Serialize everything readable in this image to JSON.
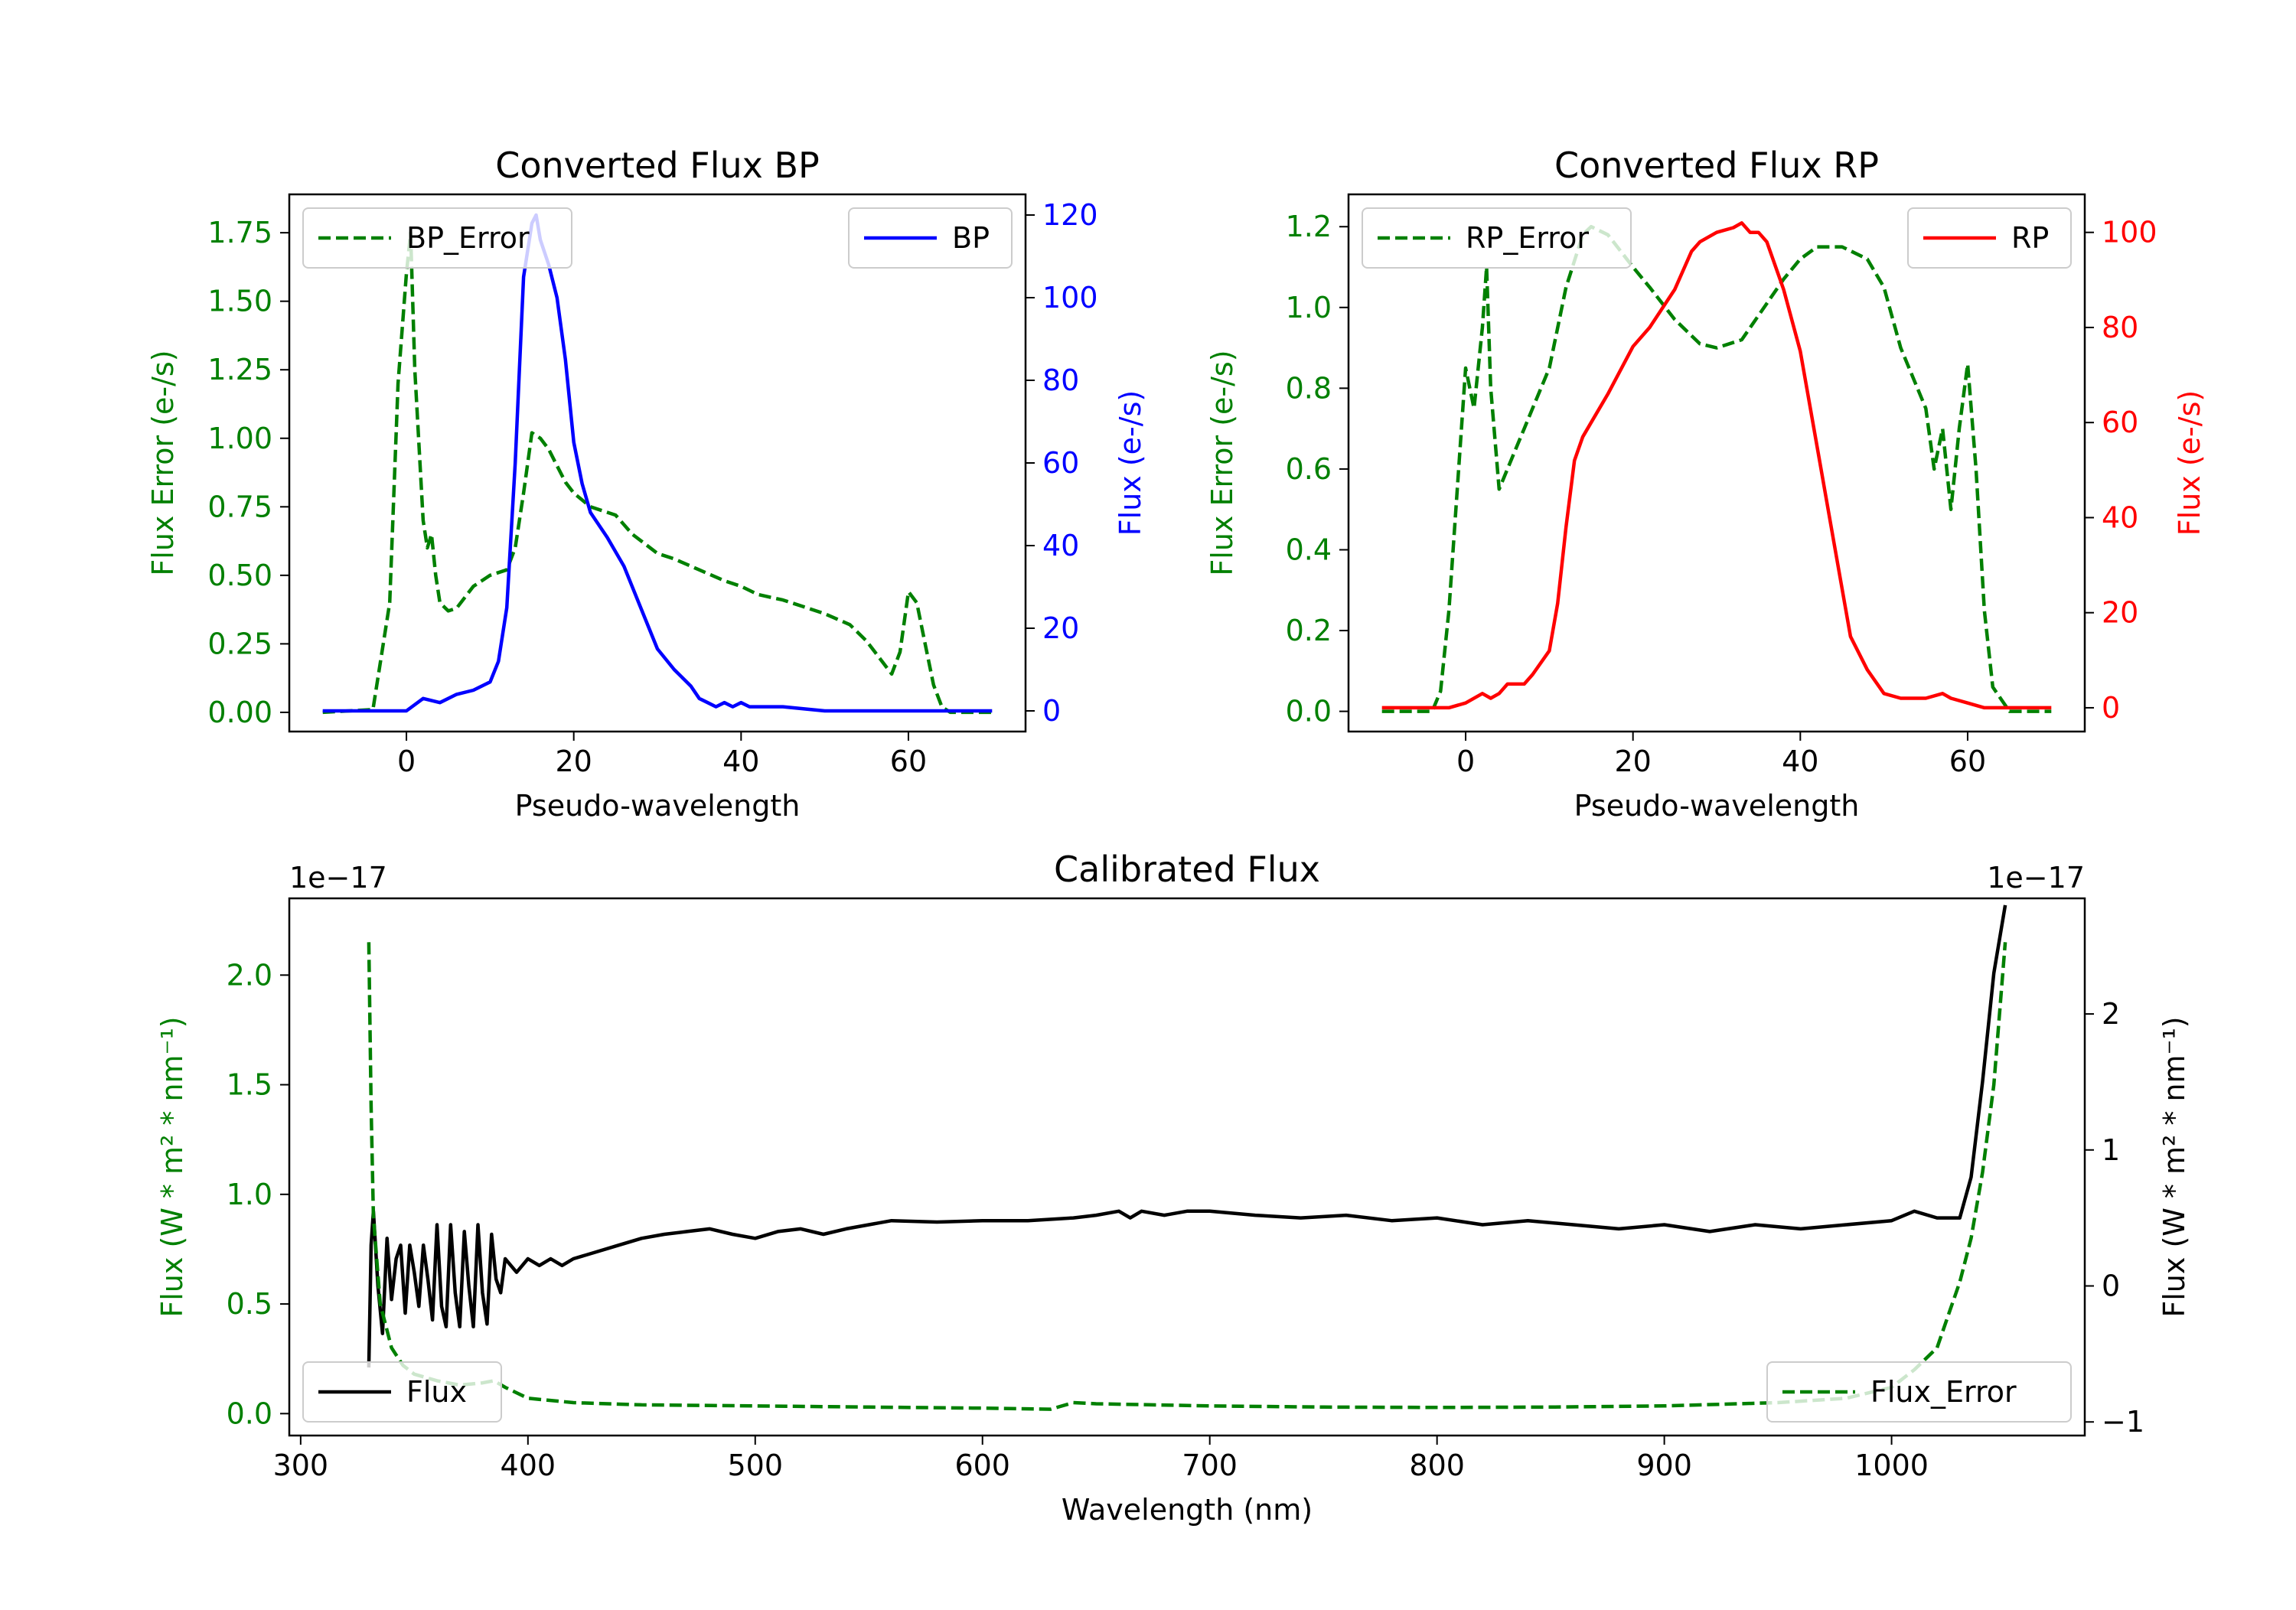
{
  "chart_data": [
    {
      "type": "line",
      "title": "Converted Flux BP",
      "xlabel": "Pseudo-wavelength",
      "ylabel_left": "Flux Error (e-/s)",
      "ylabel_right": "Flux (e-/s)",
      "xlim": [
        -14,
        74
      ],
      "ylim_left": [
        -0.07,
        1.89
      ],
      "ylim_right": [
        -5,
        125
      ],
      "xticks": [
        "0",
        "20",
        "40",
        "60"
      ],
      "yticks_left": [
        "0.00",
        "0.25",
        "0.50",
        "0.75",
        "1.00",
        "1.25",
        "1.50",
        "1.75"
      ],
      "yticks_right": [
        "0",
        "20",
        "40",
        "60",
        "80",
        "100",
        "120"
      ],
      "colors": {
        "left": "#008000",
        "right": "#0000ff"
      },
      "series": [
        {
          "name": "BP_Error",
          "axis": "left",
          "style": "dashed",
          "color": "#008000",
          "x": [
            -10,
            -4,
            -2,
            -1,
            0,
            0.5,
            1,
            2,
            2.5,
            3,
            3.5,
            4,
            5,
            6,
            8,
            10,
            12,
            13,
            14,
            15,
            16,
            17,
            18,
            19,
            20,
            22,
            25,
            27,
            30,
            32,
            35,
            38,
            40,
            42,
            45,
            48,
            50,
            53,
            55,
            57,
            58,
            59,
            60,
            61,
            62,
            63,
            64,
            65,
            67,
            70
          ],
          "values": [
            0.0,
            0.01,
            0.4,
            1.2,
            1.6,
            1.75,
            1.25,
            0.7,
            0.6,
            0.65,
            0.5,
            0.4,
            0.37,
            0.38,
            0.46,
            0.5,
            0.52,
            0.6,
            0.8,
            1.02,
            1.0,
            0.96,
            0.9,
            0.84,
            0.8,
            0.75,
            0.72,
            0.65,
            0.58,
            0.56,
            0.52,
            0.48,
            0.46,
            0.43,
            0.41,
            0.38,
            0.36,
            0.32,
            0.26,
            0.18,
            0.14,
            0.22,
            0.44,
            0.4,
            0.25,
            0.1,
            0.02,
            0.0,
            0.0,
            0.0
          ]
        },
        {
          "name": "BP",
          "axis": "right",
          "style": "solid",
          "color": "#0000ff",
          "x": [
            -10,
            -5,
            0,
            2,
            4,
            6,
            8,
            10,
            11,
            12,
            13,
            14,
            15,
            15.5,
            16,
            17,
            18,
            19,
            20,
            21,
            22,
            24,
            26,
            28,
            30,
            32,
            34,
            35,
            36,
            37,
            38,
            39,
            40,
            41,
            42,
            45,
            50,
            55,
            60,
            65,
            70
          ],
          "values": [
            0,
            0,
            0,
            3,
            2,
            4,
            5,
            7,
            12,
            25,
            60,
            105,
            118,
            120,
            114,
            108,
            100,
            85,
            65,
            55,
            48,
            42,
            35,
            25,
            15,
            10,
            6,
            3,
            2,
            1,
            2,
            1,
            2,
            1,
            1,
            1,
            0,
            0,
            0,
            0,
            0
          ]
        }
      ],
      "legend": [
        {
          "label": "BP_Error",
          "position": "top-left"
        },
        {
          "label": "BP",
          "position": "top-right"
        }
      ]
    },
    {
      "type": "line",
      "title": "Converted Flux RP",
      "xlabel": "Pseudo-wavelength",
      "ylabel_left": "Flux Error (e-/s)",
      "ylabel_right": "Flux (e-/s)",
      "xlim": [
        -14,
        74
      ],
      "ylim_left": [
        -0.05,
        1.28
      ],
      "ylim_right": [
        -5,
        108
      ],
      "xticks": [
        "0",
        "20",
        "40",
        "60"
      ],
      "yticks_left": [
        "0.0",
        "0.2",
        "0.4",
        "0.6",
        "0.8",
        "1.0",
        "1.2"
      ],
      "yticks_right": [
        "0",
        "20",
        "40",
        "60",
        "80",
        "100"
      ],
      "colors": {
        "left": "#008000",
        "right": "#ff0000"
      },
      "series": [
        {
          "name": "RP_Error",
          "axis": "left",
          "style": "dashed",
          "color": "#008000",
          "x": [
            -10,
            -4,
            -3,
            -2,
            -1,
            0,
            1,
            2,
            2.5,
            3,
            4,
            5,
            6,
            7,
            8,
            10,
            12,
            14,
            15,
            17,
            20,
            22,
            25,
            28,
            30,
            33,
            35,
            38,
            40,
            42,
            45,
            48,
            50,
            52,
            54,
            55,
            56,
            57,
            58,
            59,
            60,
            61,
            62,
            63,
            65,
            70
          ],
          "values": [
            0.0,
            0.0,
            0.05,
            0.25,
            0.55,
            0.85,
            0.75,
            0.95,
            1.1,
            0.8,
            0.55,
            0.6,
            0.65,
            0.7,
            0.75,
            0.85,
            1.05,
            1.18,
            1.2,
            1.18,
            1.1,
            1.05,
            0.97,
            0.91,
            0.9,
            0.92,
            0.98,
            1.07,
            1.12,
            1.15,
            1.15,
            1.12,
            1.05,
            0.9,
            0.8,
            0.75,
            0.6,
            0.7,
            0.5,
            0.7,
            0.86,
            0.6,
            0.25,
            0.06,
            0.0,
            0.0
          ]
        },
        {
          "name": "RP",
          "axis": "right",
          "style": "solid",
          "color": "#ff0000",
          "x": [
            -10,
            -5,
            -2,
            0,
            2,
            3,
            4,
            5,
            6,
            7,
            8,
            10,
            11,
            12,
            13,
            14,
            15,
            17,
            20,
            22,
            25,
            27,
            28,
            30,
            32,
            33,
            34,
            35,
            36,
            38,
            40,
            42,
            44,
            46,
            48,
            50,
            52,
            55,
            57,
            58,
            60,
            62,
            65,
            70
          ],
          "values": [
            0,
            0,
            0,
            1,
            3,
            2,
            3,
            5,
            5,
            5,
            7,
            12,
            22,
            38,
            52,
            57,
            60,
            66,
            76,
            80,
            88,
            96,
            98,
            100,
            101,
            102,
            100,
            100,
            98,
            88,
            75,
            55,
            35,
            15,
            8,
            3,
            2,
            2,
            3,
            2,
            1,
            0,
            0,
            0
          ]
        }
      ],
      "legend": [
        {
          "label": "RP_Error",
          "position": "top-left"
        },
        {
          "label": "RP",
          "position": "top-right"
        }
      ]
    },
    {
      "type": "line",
      "title": "Calibrated Flux",
      "xlabel": "Wavelength (nm)",
      "ylabel_left": "Flux (W * m² * nm⁻¹)",
      "ylabel_right": "Flux (W * m² * nm⁻¹)",
      "offset_left": "1e−17",
      "offset_right": "1e−17",
      "xlim": [
        295,
        1085
      ],
      "ylim_left": [
        -0.1,
        2.35
      ],
      "ylim_right": [
        -1.1,
        2.85
      ],
      "xticks": [
        "300",
        "400",
        "500",
        "600",
        "700",
        "800",
        "900",
        "1000"
      ],
      "yticks_left": [
        "0.0",
        "0.5",
        "1.0",
        "1.5",
        "2.0"
      ],
      "yticks_right": [
        "−1",
        "0",
        "1",
        "2"
      ],
      "colors": {
        "left": "#008000",
        "right": "#000000"
      },
      "series": [
        {
          "name": "Flux",
          "axis": "right",
          "style": "solid",
          "color": "#000000",
          "x": [
            330,
            331,
            332,
            334,
            336,
            338,
            340,
            342,
            344,
            346,
            348,
            350,
            352,
            354,
            356,
            358,
            360,
            362,
            364,
            366,
            368,
            370,
            372,
            374,
            376,
            378,
            380,
            382,
            384,
            386,
            388,
            390,
            395,
            400,
            405,
            410,
            415,
            420,
            430,
            440,
            450,
            460,
            470,
            480,
            490,
            500,
            510,
            520,
            530,
            540,
            550,
            560,
            580,
            600,
            620,
            640,
            650,
            660,
            665,
            670,
            680,
            690,
            700,
            720,
            740,
            760,
            780,
            800,
            820,
            840,
            860,
            880,
            900,
            920,
            940,
            960,
            980,
            1000,
            1010,
            1020,
            1030,
            1035,
            1040,
            1045,
            1050
          ],
          "values": [
            -0.6,
            0.3,
            0.55,
            0.0,
            -0.35,
            0.35,
            -0.1,
            0.2,
            0.3,
            -0.2,
            0.3,
            0.1,
            -0.15,
            0.3,
            0.05,
            -0.25,
            0.45,
            -0.15,
            -0.3,
            0.45,
            -0.05,
            -0.3,
            0.4,
            0.0,
            -0.3,
            0.45,
            -0.05,
            -0.28,
            0.38,
            0.05,
            -0.05,
            0.2,
            0.1,
            0.2,
            0.15,
            0.2,
            0.15,
            0.2,
            0.25,
            0.3,
            0.35,
            0.38,
            0.4,
            0.42,
            0.38,
            0.35,
            0.4,
            0.42,
            0.38,
            0.42,
            0.45,
            0.48,
            0.47,
            0.48,
            0.48,
            0.5,
            0.52,
            0.55,
            0.5,
            0.55,
            0.52,
            0.55,
            0.55,
            0.52,
            0.5,
            0.52,
            0.48,
            0.5,
            0.45,
            0.48,
            0.45,
            0.42,
            0.45,
            0.4,
            0.45,
            0.42,
            0.45,
            0.48,
            0.55,
            0.5,
            0.5,
            0.8,
            1.5,
            2.3,
            2.8
          ]
        },
        {
          "name": "Flux_Error",
          "axis": "left",
          "style": "dashed",
          "color": "#008000",
          "x": [
            330,
            331,
            332,
            335,
            340,
            345,
            350,
            360,
            370,
            380,
            385,
            390,
            400,
            420,
            450,
            500,
            550,
            600,
            630,
            640,
            650,
            700,
            750,
            800,
            850,
            900,
            950,
            980,
            1000,
            1010,
            1020,
            1025,
            1030,
            1035,
            1040,
            1045,
            1050
          ],
          "values": [
            2.15,
            1.4,
            0.9,
            0.5,
            0.3,
            0.22,
            0.18,
            0.15,
            0.13,
            0.14,
            0.15,
            0.12,
            0.07,
            0.05,
            0.04,
            0.035,
            0.03,
            0.025,
            0.02,
            0.05,
            0.045,
            0.035,
            0.03,
            0.028,
            0.03,
            0.035,
            0.05,
            0.07,
            0.12,
            0.2,
            0.3,
            0.45,
            0.6,
            0.8,
            1.1,
            1.5,
            2.15
          ]
        }
      ],
      "legend": [
        {
          "label": "Flux",
          "position": "lower-left"
        },
        {
          "label": "Flux_Error",
          "position": "lower-right"
        }
      ]
    }
  ]
}
